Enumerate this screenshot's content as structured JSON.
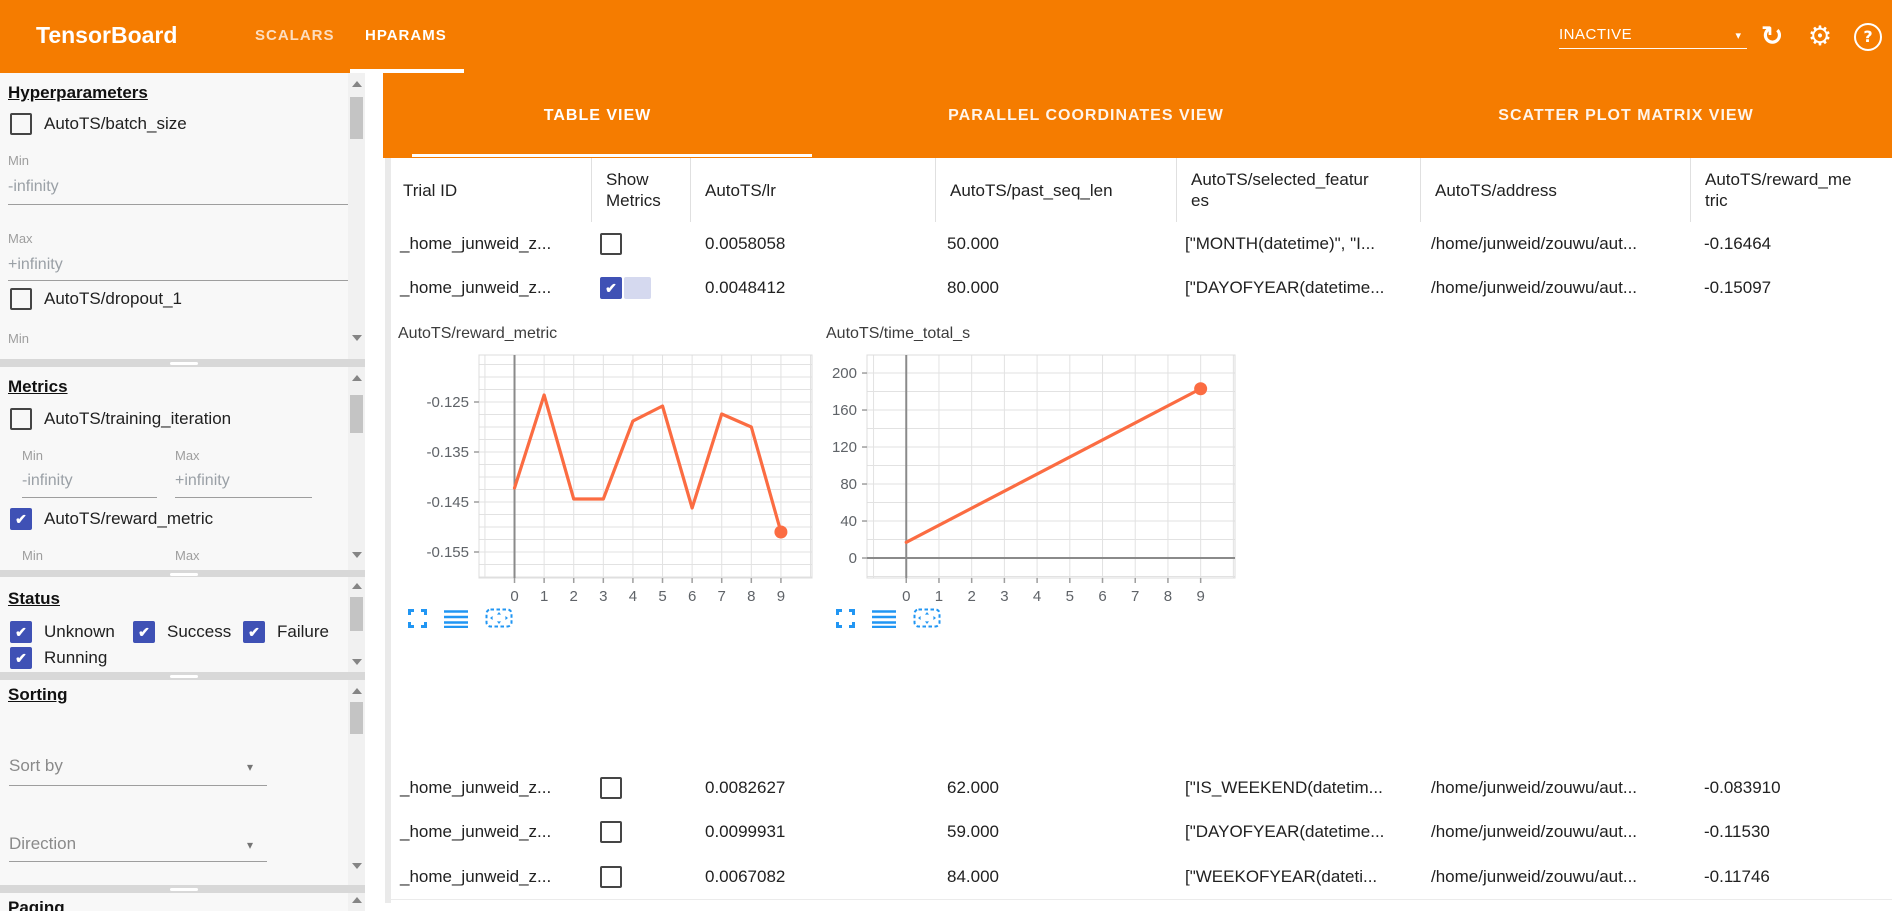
{
  "colors": {
    "appbar_orange": "#f57c00",
    "checkbox_blue": "#3f51b5",
    "chart_line_orange": "#fb6c42",
    "chart_icon_blue": "#2196f3"
  },
  "appbar": {
    "title": "TensorBoard",
    "nav_tabs": [
      {
        "label": "SCALARS",
        "active": false
      },
      {
        "label": "HPARAMS",
        "active": true
      }
    ],
    "reload_select": {
      "value": "INACTIVE"
    },
    "icons": [
      "reload-icon",
      "settings-gear-icon",
      "help-icon"
    ],
    "help_glyph": "?",
    "reload_glyph": "↻",
    "gear_glyph": "⚙",
    "caret_glyph": "▾"
  },
  "sidebar": {
    "hyperparameters": {
      "title": "Hyperparameters",
      "items": [
        {
          "label": "AutoTS/batch_size",
          "checked": false
        },
        {
          "label": "AutoTS/dropout_1",
          "checked": false
        }
      ],
      "batch_size_filter": {
        "min_label": "Min",
        "min_value": "-infinity",
        "max_label": "Max",
        "max_value": "+infinity"
      },
      "dropout_filter": {
        "min_label": "Min"
      }
    },
    "metrics": {
      "title": "Metrics",
      "items": [
        {
          "label": "AutoTS/training_iteration",
          "checked": false
        },
        {
          "label": "AutoTS/reward_metric",
          "checked": true
        }
      ],
      "training_iteration_filter": {
        "min_label": "Min",
        "min_value": "-infinity",
        "max_label": "Max",
        "max_value": "+infinity"
      },
      "reward_metric_filter": {
        "min_label": "Min",
        "max_label": "Max"
      }
    },
    "status": {
      "title": "Status",
      "items": [
        {
          "label": "Unknown",
          "checked": true
        },
        {
          "label": "Success",
          "checked": true
        },
        {
          "label": "Failure",
          "checked": true
        },
        {
          "label": "Running",
          "checked": true
        }
      ]
    },
    "sorting": {
      "title": "Sorting",
      "sort_by_placeholder": "Sort by",
      "direction_placeholder": "Direction"
    },
    "paging": {
      "title": "Paging"
    }
  },
  "main": {
    "view_tabs": [
      {
        "label": "TABLE VIEW",
        "active": true
      },
      {
        "label": "PARALLEL COORDINATES VIEW",
        "active": false
      },
      {
        "label": "SCATTER PLOT MATRIX VIEW",
        "active": false
      }
    ],
    "table": {
      "columns": [
        "Trial ID",
        "Show Metrics",
        "AutoTS/lr",
        "AutoTS/past_seq_len",
        "AutoTS/selected_features",
        "AutoTS/address",
        "AutoTS/reward_metric"
      ],
      "rows": [
        {
          "trial_id": "_home_junweid_z...",
          "show_metrics": false,
          "lr": "0.0058058",
          "past_seq_len": "50.000",
          "selected_features": "[\"MONTH(datetime)\", \"I...",
          "address": "/home/junweid/zouwu/aut...",
          "reward_metric": "-0.16464"
        },
        {
          "trial_id": "_home_junweid_z...",
          "show_metrics": true,
          "lr": "0.0048412",
          "past_seq_len": "80.000",
          "selected_features": "[\"DAYOFYEAR(datetime...",
          "address": "/home/junweid/zouwu/aut...",
          "reward_metric": "-0.15097"
        },
        {
          "trial_id": "_home_junweid_z...",
          "show_metrics": false,
          "lr": "0.0082627",
          "past_seq_len": "62.000",
          "selected_features": "[\"IS_WEEKEND(datetim...",
          "address": "/home/junweid/zouwu/aut...",
          "reward_metric": "-0.083910"
        },
        {
          "trial_id": "_home_junweid_z...",
          "show_metrics": false,
          "lr": "0.0099931",
          "past_seq_len": "59.000",
          "selected_features": "[\"DAYOFYEAR(datetime...",
          "address": "/home/junweid/zouwu/aut...",
          "reward_metric": "-0.11530"
        },
        {
          "trial_id": "_home_junweid_z...",
          "show_metrics": false,
          "lr": "0.0067082",
          "past_seq_len": "84.000",
          "selected_features": "[\"WEEKOFYEAR(dateti...",
          "address": "/home/junweid/zouwu/aut...",
          "reward_metric": "-0.11746"
        }
      ]
    },
    "chart_icons": [
      "fullscreen-icon",
      "series-list-icon",
      "reset-pan-zoom-icon"
    ]
  },
  "chart_data": [
    {
      "type": "line",
      "title": "AutoTS/reward_metric",
      "x": [
        0,
        1,
        2,
        3,
        4,
        5,
        6,
        7,
        8,
        9
      ],
      "y": [
        -0.1422,
        -0.1236,
        -0.1444,
        -0.1444,
        -0.1288,
        -0.1258,
        -0.1462,
        -0.1274,
        -0.13,
        -0.151
      ],
      "xlim": [
        -1.2,
        10.05
      ],
      "ylim": [
        -0.1602,
        -0.1156
      ],
      "xticks": [
        0,
        1,
        2,
        3,
        4,
        5,
        6,
        7,
        8,
        9
      ],
      "yticks": [
        -0.125,
        -0.135,
        -0.145,
        -0.155
      ],
      "ytick_labels": [
        "-0.125",
        "-0.135",
        "-0.145",
        "-0.155"
      ],
      "x_grid_step": 1,
      "y_grid_step": 0.0025,
      "axis_line_x0": true,
      "axis_line_y0": false,
      "endpoint_dot": true,
      "color": "#fb6c42",
      "grid": true,
      "legend": "none"
    },
    {
      "type": "line",
      "title": "AutoTS/time_total_s",
      "x": [
        0,
        9
      ],
      "y": [
        17,
        183
      ],
      "xlim": [
        -1.2,
        10.05
      ],
      "ylim": [
        -21.6,
        219.5
      ],
      "xticks": [
        0,
        1,
        2,
        3,
        4,
        5,
        6,
        7,
        8,
        9
      ],
      "yticks": [
        0,
        40,
        80,
        120,
        160,
        200
      ],
      "ytick_labels": [
        "0",
        "40",
        "80",
        "120",
        "160",
        "200"
      ],
      "x_grid_step": 1,
      "y_grid_step": 20,
      "axis_line_x0": true,
      "axis_line_y0": true,
      "endpoint_dot": true,
      "color": "#fb6c42",
      "grid": true,
      "legend": "none"
    }
  ]
}
